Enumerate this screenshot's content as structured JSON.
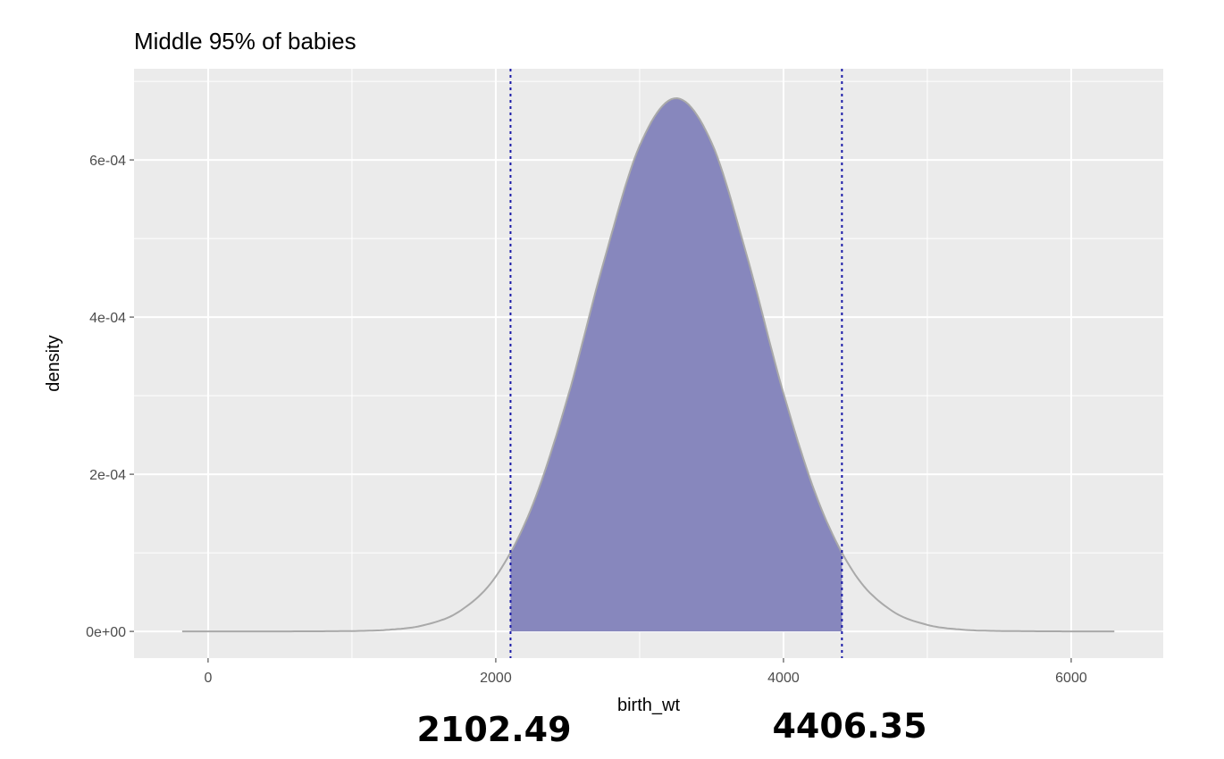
{
  "chart_data": {
    "type": "area",
    "title": "Middle 95% of babies",
    "xlabel": "birth_wt",
    "ylabel": "density",
    "xlim": [
      -515,
      6640
    ],
    "ylim": [
      -3.4e-05,
      0.000716
    ],
    "grid": true,
    "x_ticks": [
      0,
      2000,
      4000,
      6000
    ],
    "x_tick_labels": [
      "0",
      "2000",
      "4000",
      "6000"
    ],
    "y_ticks": [
      0,
      0.0002,
      0.0004,
      0.0006
    ],
    "y_tick_labels": [
      "0e+00",
      "2e-04",
      "4e-04",
      "6e-04"
    ],
    "density_curve": {
      "x": [
        -180,
        500,
        1000,
        1250,
        1500,
        1750,
        2000,
        2250,
        2500,
        2750,
        3000,
        3250,
        3500,
        3750,
        4000,
        4250,
        4500,
        4750,
        5000,
        5250,
        5500,
        6000,
        6311
      ],
      "y": [
        0,
        0,
        4e-07,
        2e-06,
        7.9e-06,
        2.58e-05,
        6.98e-05,
        0.000158,
        0.000298,
        0.00047,
        0.000618,
        0.0006785,
        0.000622,
        0.000475,
        0.000303,
        0.000162,
        7.18e-05,
        2.67e-05,
        8.3e-06,
        2.1e-06,
        5e-07,
        0,
        0
      ]
    },
    "shaded_interval": [
      2102.49,
      4406.35
    ],
    "interval_labels": [
      "2102.49",
      "4406.35"
    ],
    "colors": {
      "fill": "#8787bd",
      "curve": "#a9a9a9",
      "vline": "#1a1aa8",
      "panel": "#ebebeb"
    }
  }
}
